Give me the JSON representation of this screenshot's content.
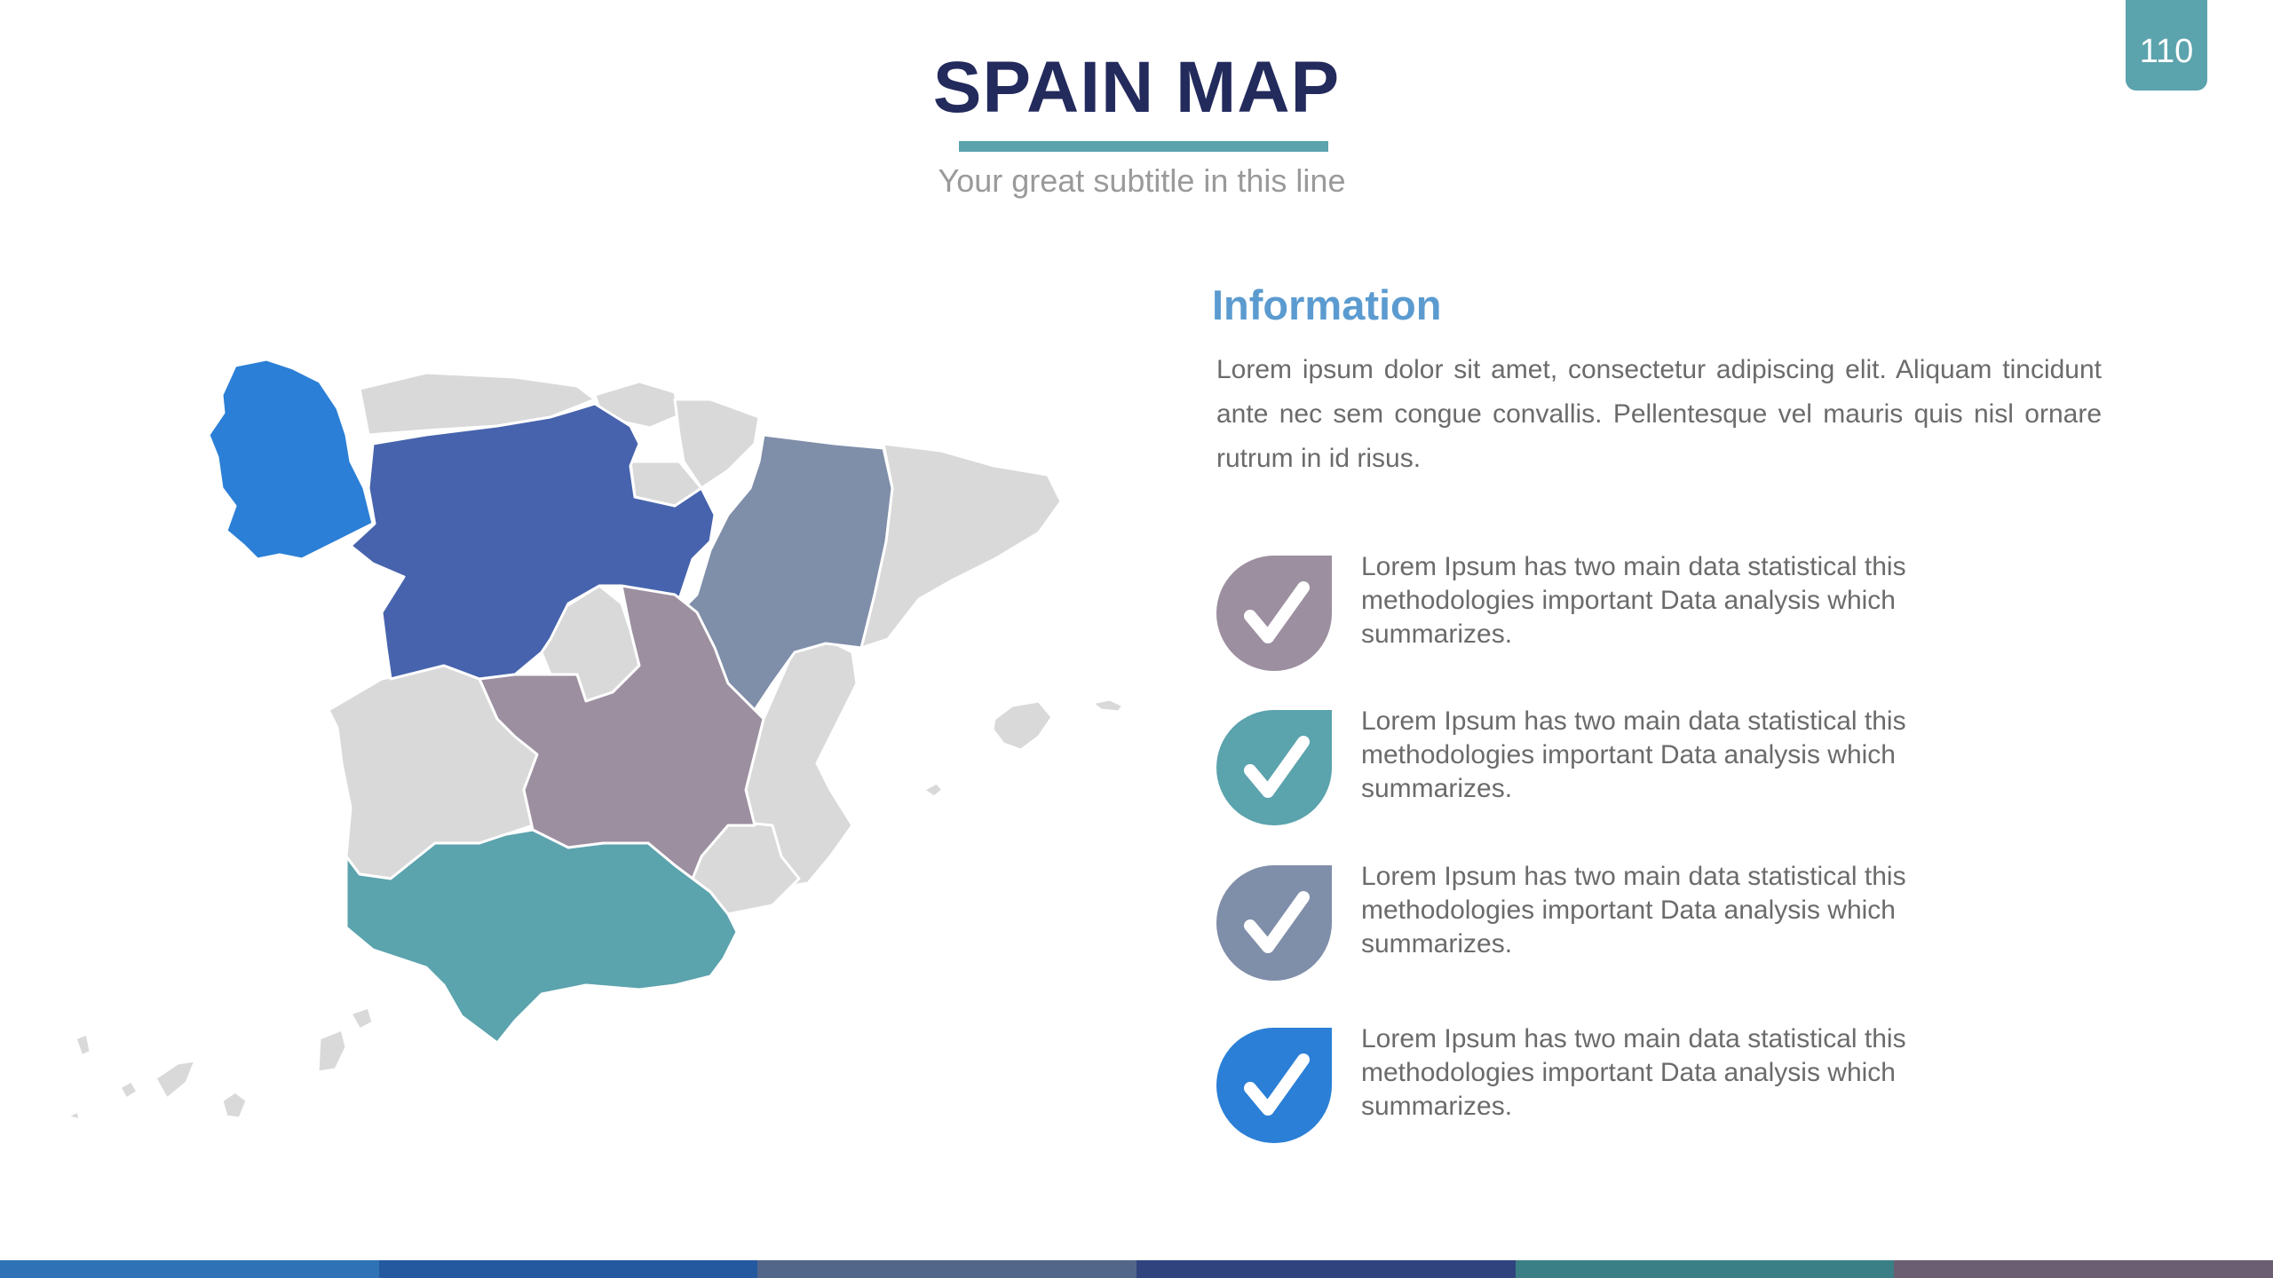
{
  "page": {
    "number": "110"
  },
  "header": {
    "title": "SPAIN MAP",
    "subtitle": "Your great subtitle in this line"
  },
  "map": {
    "highlight_colors": [
      "#2b7fd6",
      "#4763ad",
      "#7f8ea9",
      "#9c8fa0",
      "#5ba3ad"
    ],
    "base_color": "#d9d9d9"
  },
  "info": {
    "heading": "Information",
    "body": "Lorem ipsum dolor sit amet, consectetur adipiscing elit. Aliquam tincidunt ante nec sem congue convallis. Pellentesque vel mauris quis nisl ornare rutrum in id risus."
  },
  "items": [
    {
      "text": "Lorem Ipsum has two main data statistical this methodologies important Data analysis which summarizes.",
      "color": "#9c8fa0",
      "icon": "check-icon"
    },
    {
      "text": "Lorem Ipsum has two main data statistical this methodologies important Data analysis which summarizes.",
      "color": "#5ba3ad",
      "icon": "check-icon"
    },
    {
      "text": "Lorem Ipsum has two main data statistical this methodologies important Data analysis which summarizes.",
      "color": "#7f8ea9",
      "icon": "check-icon"
    },
    {
      "text": "Lorem Ipsum has two main data statistical this methodologies important Data analysis which summarizes.",
      "color": "#2b7fd6",
      "icon": "check-icon"
    }
  ],
  "footer": {
    "bar_colors": [
      "#2f73b6",
      "#2459a0",
      "#52668a",
      "#30437f",
      "#3b7f86",
      "#6b5e72"
    ]
  }
}
